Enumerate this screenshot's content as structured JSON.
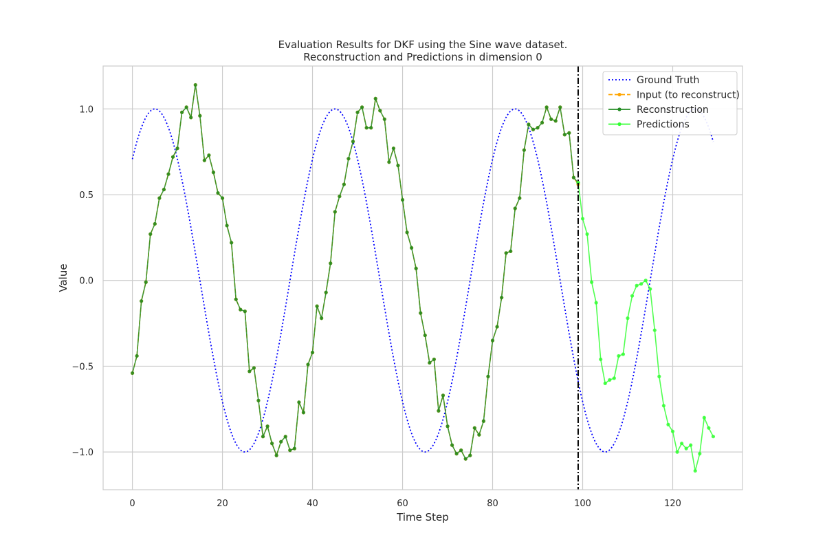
{
  "chart_data": {
    "type": "line",
    "title": "Evaluation Results for DKF using the Sine wave dataset.",
    "subtitle": "Reconstruction and Predictions in dimension 0",
    "xlabel": "Time Step",
    "ylabel": "Value",
    "xlim": [
      -6.5,
      135.5
    ],
    "ylim": [
      -1.22,
      1.25
    ],
    "xticks": [
      0,
      20,
      40,
      60,
      80,
      100,
      120
    ],
    "yticks": [
      -1.0,
      -0.5,
      0.0,
      0.5,
      1.0
    ],
    "xtick_labels": [
      "0",
      "20",
      "40",
      "60",
      "80",
      "100",
      "120"
    ],
    "ytick_labels": [
      "−1.0",
      "−0.5",
      "0.0",
      "0.5",
      "1.0"
    ],
    "grid": true,
    "legend_position": "upper right",
    "divider_x": 99,
    "series": [
      {
        "name": "Ground Truth",
        "style": "dotted",
        "color": "#0000ff",
        "x_range": [
          0,
          129
        ],
        "function": "sin",
        "period": 40,
        "phase_x0": -5.0
      },
      {
        "name": "Input (to reconstruct)",
        "style": "dashed",
        "color": "#ffa500",
        "x_start": 0,
        "values": [
          -0.54,
          -0.44,
          -0.12,
          -0.01,
          0.27,
          0.33,
          0.48,
          0.53,
          0.62,
          0.72,
          0.77,
          0.98,
          1.01,
          0.95,
          1.14,
          0.96,
          0.7,
          0.73,
          0.63,
          0.51,
          0.48,
          0.32,
          0.22,
          -0.11,
          -0.17,
          -0.18,
          -0.53,
          -0.51,
          -0.7,
          -0.91,
          -0.85,
          -0.95,
          -1.02,
          -0.94,
          -0.91,
          -0.99,
          -0.98,
          -0.71,
          -0.77,
          -0.49,
          -0.42,
          -0.15,
          -0.22,
          -0.07,
          0.1,
          0.4,
          0.49,
          0.56,
          0.71,
          0.81,
          0.98,
          1.01,
          0.89,
          0.89,
          1.06,
          0.99,
          0.94,
          0.69,
          0.77,
          0.67,
          0.47,
          0.28,
          0.19,
          0.07,
          -0.19,
          -0.32,
          -0.48,
          -0.46,
          -0.76,
          -0.67,
          -0.85,
          -0.96,
          -1.01,
          -0.99,
          -1.04,
          -1.02,
          -0.86,
          -0.9,
          -0.82,
          -0.56,
          -0.35,
          -0.27,
          -0.1,
          0.16,
          0.17,
          0.42,
          0.48,
          0.76,
          0.91,
          0.88,
          0.89,
          0.92,
          1.01,
          0.94,
          0.93,
          1.01,
          0.85,
          0.86,
          0.6,
          0.56
        ]
      },
      {
        "name": "Reconstruction",
        "style": "solid",
        "color": "#228b22",
        "x_start": 0,
        "values": [
          -0.54,
          -0.44,
          -0.12,
          -0.01,
          0.27,
          0.33,
          0.48,
          0.53,
          0.62,
          0.72,
          0.77,
          0.98,
          1.01,
          0.95,
          1.14,
          0.96,
          0.7,
          0.73,
          0.63,
          0.51,
          0.48,
          0.32,
          0.22,
          -0.11,
          -0.17,
          -0.18,
          -0.53,
          -0.51,
          -0.7,
          -0.91,
          -0.85,
          -0.95,
          -1.02,
          -0.94,
          -0.91,
          -0.99,
          -0.98,
          -0.71,
          -0.77,
          -0.49,
          -0.42,
          -0.15,
          -0.22,
          -0.07,
          0.1,
          0.4,
          0.49,
          0.56,
          0.71,
          0.81,
          0.98,
          1.01,
          0.89,
          0.89,
          1.06,
          0.99,
          0.94,
          0.69,
          0.77,
          0.67,
          0.47,
          0.28,
          0.19,
          0.07,
          -0.19,
          -0.32,
          -0.48,
          -0.46,
          -0.76,
          -0.67,
          -0.85,
          -0.96,
          -1.01,
          -0.99,
          -1.04,
          -1.02,
          -0.86,
          -0.9,
          -0.82,
          -0.56,
          -0.35,
          -0.27,
          -0.1,
          0.16,
          0.17,
          0.42,
          0.48,
          0.76,
          0.91,
          0.88,
          0.89,
          0.92,
          1.01,
          0.94,
          0.93,
          1.01,
          0.85,
          0.86,
          0.6,
          0.57
        ]
      },
      {
        "name": "Predictions",
        "style": "solid",
        "color": "#33ff33",
        "x_start": 99,
        "values": [
          0.57,
          0.36,
          0.27,
          -0.01,
          -0.13,
          -0.46,
          -0.6,
          -0.58,
          -0.57,
          -0.44,
          -0.43,
          -0.22,
          -0.09,
          -0.03,
          -0.02,
          0.0,
          -0.05,
          -0.29,
          -0.56,
          -0.73,
          -0.84,
          -0.88,
          -1.0,
          -0.95,
          -0.98,
          -0.96,
          -1.11,
          -1.01,
          -0.8,
          -0.86,
          -0.91
        ]
      }
    ]
  }
}
